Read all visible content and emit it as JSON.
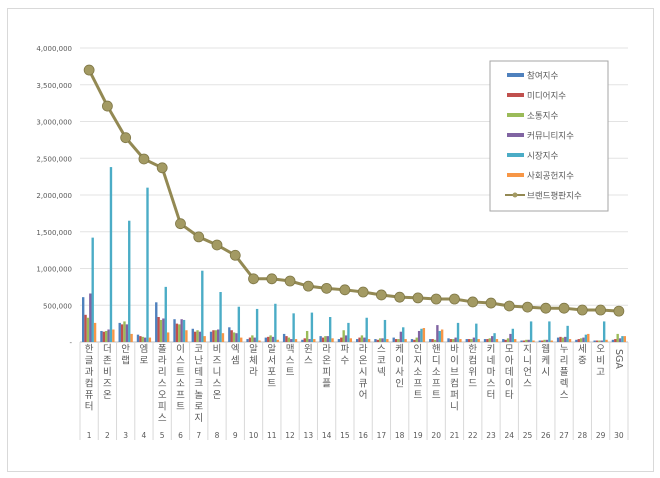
{
  "chart_data": {
    "type": "bar",
    "title": "",
    "xlabel": "",
    "ylabel": "",
    "ylim": [
      0,
      4000000
    ],
    "yticks": [
      "-",
      "500,000",
      "1,000,000",
      "1,500,000",
      "2,000,000",
      "2,500,000",
      "3,000,000",
      "3,500,000",
      "4,000,000"
    ],
    "grid": true,
    "legend_position": "top-right",
    "categories": [
      "한글과컴퓨터",
      "더존비즈온",
      "안랩",
      "엠로",
      "폴라리스오피스",
      "이스트소프트",
      "코난테크놀로지",
      "비즈니스온",
      "엑셈",
      "알체라",
      "알서포트",
      "맥스트",
      "윈스",
      "라온피플",
      "파수",
      "라온시큐어",
      "스코넥",
      "케이사인",
      "인지소프트",
      "핸디소프트",
      "바이브컴퍼니",
      "한컴위드",
      "키네마스터",
      "모아데이타",
      "지니언스",
      "웹케시",
      "누리플렉스",
      "세중",
      "오비고",
      "SGA"
    ],
    "ranks": [
      "1",
      "2",
      "3",
      "4",
      "5",
      "6",
      "7",
      "8",
      "9",
      "10",
      "11",
      "12",
      "13",
      "14",
      "15",
      "16",
      "17",
      "18",
      "19",
      "20",
      "21",
      "22",
      "23",
      "24",
      "25",
      "26",
      "27",
      "28",
      "29",
      "30"
    ],
    "series": [
      {
        "name": "참여지수",
        "color": "#4f81bd",
        "values": [
          610000,
          150000,
          260000,
          100000,
          540000,
          310000,
          180000,
          140000,
          200000,
          40000,
          60000,
          110000,
          30000,
          80000,
          40000,
          40000,
          40000,
          60000,
          40000,
          40000,
          50000,
          40000,
          40000,
          40000,
          20000,
          20000,
          60000,
          30000,
          20000,
          30000
        ]
      },
      {
        "name": "미디어지수",
        "color": "#c0504d",
        "values": [
          370000,
          140000,
          240000,
          80000,
          340000,
          250000,
          140000,
          160000,
          160000,
          60000,
          70000,
          80000,
          50000,
          60000,
          60000,
          60000,
          30000,
          40000,
          30000,
          40000,
          40000,
          40000,
          40000,
          30000,
          20000,
          20000,
          70000,
          40000,
          20000,
          40000
        ]
      },
      {
        "name": "소통지수",
        "color": "#9bbb59",
        "values": [
          330000,
          150000,
          280000,
          70000,
          300000,
          240000,
          160000,
          160000,
          130000,
          90000,
          90000,
          60000,
          150000,
          80000,
          160000,
          90000,
          50000,
          40000,
          60000,
          30000,
          40000,
          40000,
          50000,
          50000,
          30000,
          30000,
          60000,
          50000,
          20000,
          110000
        ]
      },
      {
        "name": "커뮤니티지수",
        "color": "#8064a2",
        "values": [
          660000,
          170000,
          240000,
          60000,
          320000,
          310000,
          140000,
          170000,
          120000,
          60000,
          70000,
          40000,
          40000,
          80000,
          90000,
          60000,
          50000,
          140000,
          150000,
          230000,
          60000,
          60000,
          80000,
          110000,
          30000,
          30000,
          70000,
          60000,
          20000,
          50000
        ]
      },
      {
        "name": "시장지수",
        "color": "#4bacc6",
        "values": [
          1420000,
          2380000,
          1650000,
          2100000,
          750000,
          300000,
          970000,
          680000,
          480000,
          450000,
          520000,
          390000,
          400000,
          340000,
          260000,
          330000,
          300000,
          200000,
          180000,
          150000,
          260000,
          250000,
          120000,
          180000,
          280000,
          280000,
          220000,
          100000,
          280000,
          80000
        ]
      },
      {
        "name": "사회공헌지수",
        "color": "#f79646",
        "values": [
          260000,
          170000,
          110000,
          60000,
          130000,
          160000,
          80000,
          120000,
          60000,
          20000,
          30000,
          40000,
          40000,
          50000,
          50000,
          40000,
          40000,
          40000,
          190000,
          170000,
          40000,
          40000,
          40000,
          40000,
          20000,
          20000,
          40000,
          110000,
          30000,
          80000
        ]
      }
    ],
    "line_series": {
      "name": "브랜드평판지수",
      "color": "#938953",
      "values": [
        3700000,
        3210000,
        2780000,
        2490000,
        2370000,
        1610000,
        1430000,
        1320000,
        1180000,
        860000,
        860000,
        830000,
        760000,
        730000,
        710000,
        680000,
        640000,
        610000,
        600000,
        585000,
        585000,
        545000,
        530000,
        490000,
        475000,
        460000,
        460000,
        435000,
        435000,
        420000
      ]
    }
  }
}
